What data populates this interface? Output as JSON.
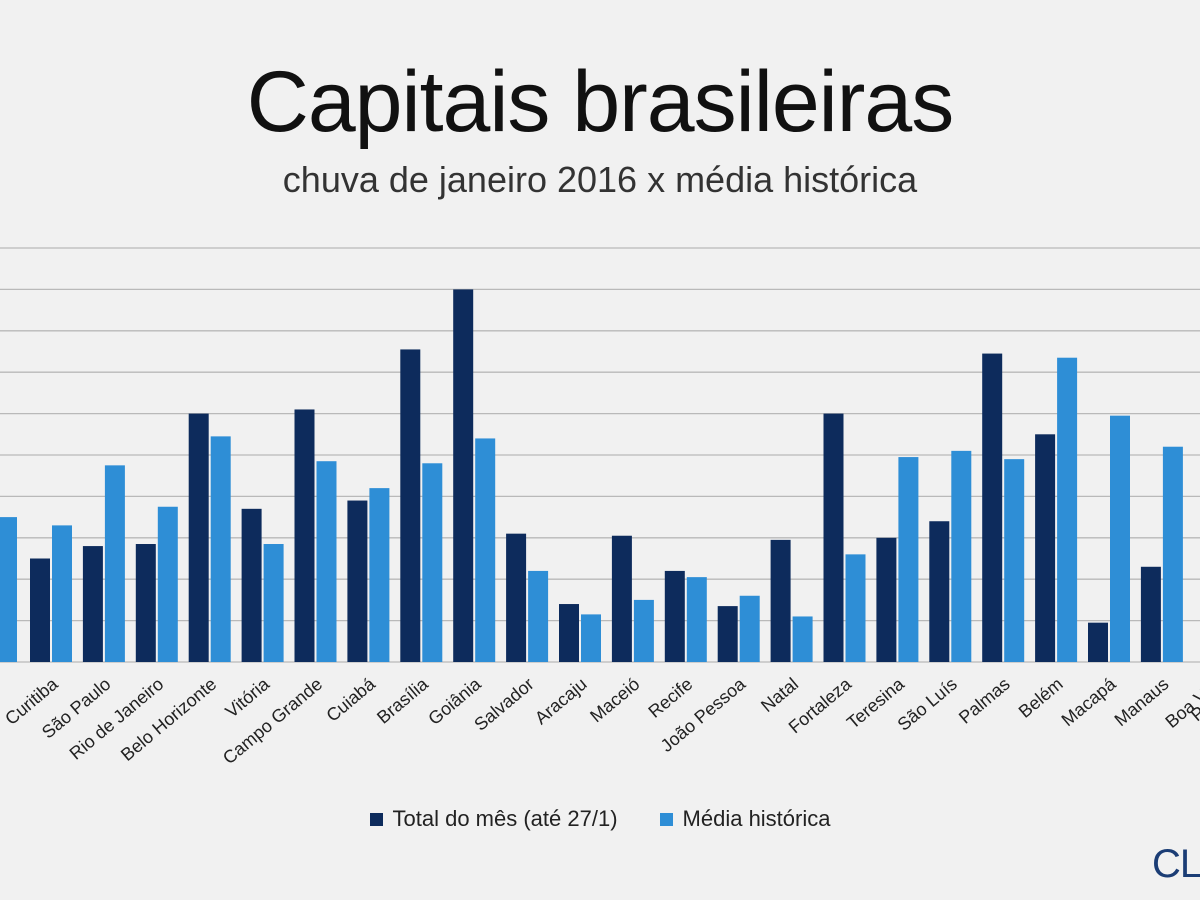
{
  "title": "Capitais brasileiras",
  "subtitle": "chuva de janeiro 2016 x média histórica",
  "legend": {
    "total_label": "Total do mês (até 27/1)",
    "media_label": "Média histórica"
  },
  "colors": {
    "total": "#0d2b5c",
    "media": "#2e8ed6",
    "grid": "#b9b9b9",
    "background": "#f1f1f1"
  },
  "brand": "CLI",
  "chart_data": {
    "type": "bar",
    "title": "Capitais brasileiras",
    "subtitle": "chuva de janeiro 2016 x média histórica",
    "xlabel": "",
    "ylabel": "",
    "ylim": [
      0,
      10
    ],
    "grid": true,
    "legend_position": "bottom",
    "categories": [
      "Curitiba",
      "São Paulo",
      "Rio de Janeiro",
      "Belo Horizonte",
      "Vitória",
      "Campo Grande",
      "Cuiabá",
      "Brasília",
      "Goiânia",
      "Salvador",
      "Aracaju",
      "Maceió",
      "Recife",
      "João Pessoa",
      "Natal",
      "Fortaleza",
      "Teresina",
      "São Luís",
      "Palmas",
      "Belém",
      "Macapá",
      "Manaus",
      "Boa Vista"
    ],
    "series": [
      {
        "name": "Total do mês (até 27/1)",
        "values": [
          2.5,
          2.8,
          2.85,
          6.0,
          3.7,
          6.1,
          3.9,
          7.55,
          9.0,
          3.1,
          1.4,
          3.05,
          2.2,
          1.35,
          2.95,
          6.0,
          3.0,
          3.4,
          7.45,
          5.5,
          0.95,
          2.3,
          null
        ]
      },
      {
        "name": "Média histórica",
        "values": [
          3.3,
          4.75,
          3.75,
          5.45,
          2.85,
          4.85,
          4.2,
          4.8,
          5.4,
          2.2,
          1.15,
          1.5,
          2.05,
          1.6,
          1.1,
          2.6,
          4.95,
          5.1,
          4.9,
          7.35,
          5.95,
          5.2,
          null
        ]
      }
    ],
    "partial_visible": {
      "left_media_value": 3.5,
      "right_labels": [
        "Boa Vista",
        "Porto Velho"
      ]
    },
    "tick_label_overrides": {
      "Boa Vista": "Boa Vist",
      "Porto Velho": "Po"
    }
  }
}
